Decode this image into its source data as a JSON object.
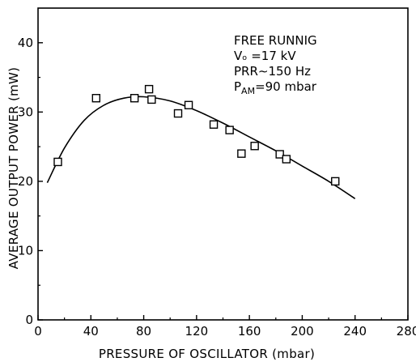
{
  "chart_data": {
    "type": "scatter",
    "title": "",
    "xlabel": "PRESSURE OF OSCILLATOR (mbar)",
    "ylabel": "AVERAGE  OUTPUT  POWER  (mW)",
    "xlim": [
      0,
      280
    ],
    "ylim": [
      0,
      45
    ],
    "x_ticks": [
      0,
      40,
      80,
      120,
      160,
      200,
      240,
      280
    ],
    "y_ticks": [
      0,
      10,
      20,
      30,
      40
    ],
    "grid": false,
    "legend": "none",
    "annotation_lines": [
      "FREE RUNNIG",
      "Vₒ =17 kV",
      "PRR∼150 Hz",
      "P_AM=90 mbar"
    ],
    "series": [
      {
        "marker": "open-square",
        "x": [
          15,
          44,
          73,
          84,
          86,
          106,
          114,
          133,
          145,
          154,
          164,
          183,
          188,
          225
        ],
        "y": [
          22.8,
          32.0,
          32.0,
          33.3,
          31.8,
          29.8,
          31.0,
          28.2,
          27.4,
          24.0,
          25.1,
          23.9,
          23.2,
          20.0
        ]
      },
      {
        "style": "smooth-line",
        "x": [
          7,
          20,
          35,
          50,
          65,
          80,
          100,
          120,
          140,
          160,
          180,
          200,
          220,
          240
        ],
        "y": [
          19.8,
          24.8,
          28.8,
          31.0,
          32.0,
          32.2,
          31.6,
          30.2,
          28.4,
          26.4,
          24.4,
          22.2,
          20.0,
          17.5
        ]
      }
    ]
  }
}
